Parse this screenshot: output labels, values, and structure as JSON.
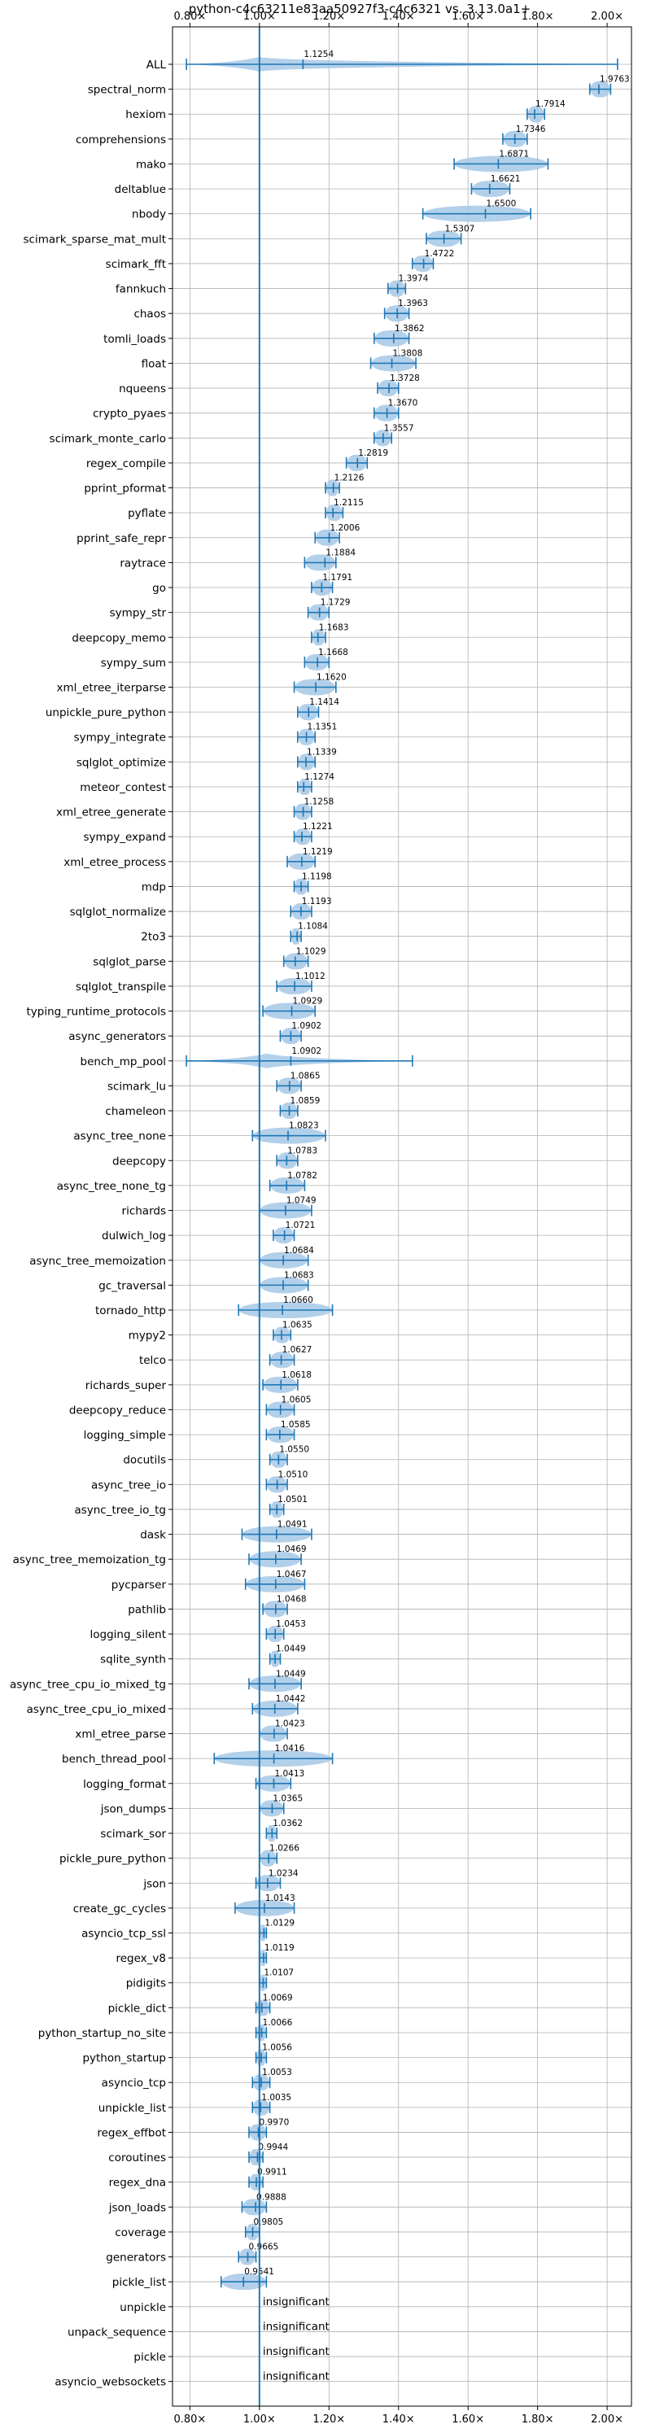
{
  "chart_data": {
    "type": "violin",
    "title": "python-c4c63211e83aa50927f3-c4c6321 vs. 3.13.0a1+",
    "xlim": [
      0.75,
      2.07
    ],
    "x_ticks": [
      0.8,
      1.0,
      1.2,
      1.4,
      1.6,
      1.8,
      2.0
    ],
    "x_tick_labels": [
      "0.80×",
      "1.00×",
      "1.20×",
      "1.40×",
      "1.60×",
      "1.80×",
      "2.00×"
    ],
    "grid": true,
    "reference_line": 1.0,
    "colors": {
      "accent": "#1f77b4",
      "violin_fill": "#a6c8e6",
      "grid": "#b0b0b0"
    },
    "insignificant_text": "insignificant",
    "benchmarks": [
      {
        "name": "ALL",
        "value": 1.1254,
        "label": "1.1254",
        "min": 0.79,
        "max": 2.03,
        "spread": "wide"
      },
      {
        "name": "spectral_norm",
        "value": 1.9763,
        "label": "1.9763",
        "min": 1.95,
        "max": 2.01
      },
      {
        "name": "hexiom",
        "value": 1.7914,
        "label": "1.7914",
        "min": 1.77,
        "max": 1.82
      },
      {
        "name": "comprehensions",
        "value": 1.7346,
        "label": "1.7346",
        "min": 1.7,
        "max": 1.77
      },
      {
        "name": "mako",
        "value": 1.6871,
        "label": "1.6871",
        "min": 1.56,
        "max": 1.83
      },
      {
        "name": "deltablue",
        "value": 1.6621,
        "label": "1.6621",
        "min": 1.61,
        "max": 1.72
      },
      {
        "name": "nbody",
        "value": 1.65,
        "label": "1.6500",
        "min": 1.47,
        "max": 1.78
      },
      {
        "name": "scimark_sparse_mat_mult",
        "value": 1.5307,
        "label": "1.5307",
        "min": 1.48,
        "max": 1.58
      },
      {
        "name": "scimark_fft",
        "value": 1.4722,
        "label": "1.4722",
        "min": 1.44,
        "max": 1.5
      },
      {
        "name": "fannkuch",
        "value": 1.3974,
        "label": "1.3974",
        "min": 1.37,
        "max": 1.42
      },
      {
        "name": "chaos",
        "value": 1.3963,
        "label": "1.3963",
        "min": 1.36,
        "max": 1.43
      },
      {
        "name": "tomli_loads",
        "value": 1.3862,
        "label": "1.3862",
        "min": 1.33,
        "max": 1.43
      },
      {
        "name": "float",
        "value": 1.3808,
        "label": "1.3808",
        "min": 1.32,
        "max": 1.45
      },
      {
        "name": "nqueens",
        "value": 1.3728,
        "label": "1.3728",
        "min": 1.34,
        "max": 1.4
      },
      {
        "name": "crypto_pyaes",
        "value": 1.367,
        "label": "1.3670",
        "min": 1.33,
        "max": 1.4
      },
      {
        "name": "scimark_monte_carlo",
        "value": 1.3557,
        "label": "1.3557",
        "min": 1.33,
        "max": 1.38
      },
      {
        "name": "regex_compile",
        "value": 1.2819,
        "label": "1.2819",
        "min": 1.25,
        "max": 1.31
      },
      {
        "name": "pprint_pformat",
        "value": 1.2126,
        "label": "1.2126",
        "min": 1.19,
        "max": 1.23
      },
      {
        "name": "pyflate",
        "value": 1.2115,
        "label": "1.2115",
        "min": 1.19,
        "max": 1.24
      },
      {
        "name": "pprint_safe_repr",
        "value": 1.2006,
        "label": "1.2006",
        "min": 1.16,
        "max": 1.23
      },
      {
        "name": "raytrace",
        "value": 1.1884,
        "label": "1.1884",
        "min": 1.13,
        "max": 1.22
      },
      {
        "name": "go",
        "value": 1.1791,
        "label": "1.1791",
        "min": 1.15,
        "max": 1.21
      },
      {
        "name": "sympy_str",
        "value": 1.1729,
        "label": "1.1729",
        "min": 1.14,
        "max": 1.2
      },
      {
        "name": "deepcopy_memo",
        "value": 1.1683,
        "label": "1.1683",
        "min": 1.15,
        "max": 1.19
      },
      {
        "name": "sympy_sum",
        "value": 1.1668,
        "label": "1.1668",
        "min": 1.13,
        "max": 1.2
      },
      {
        "name": "xml_etree_iterparse",
        "value": 1.162,
        "label": "1.1620",
        "min": 1.1,
        "max": 1.22
      },
      {
        "name": "unpickle_pure_python",
        "value": 1.1414,
        "label": "1.1414",
        "min": 1.11,
        "max": 1.17
      },
      {
        "name": "sympy_integrate",
        "value": 1.1351,
        "label": "1.1351",
        "min": 1.11,
        "max": 1.16
      },
      {
        "name": "sqlglot_optimize",
        "value": 1.1339,
        "label": "1.1339",
        "min": 1.11,
        "max": 1.16
      },
      {
        "name": "meteor_contest",
        "value": 1.1274,
        "label": "1.1274",
        "min": 1.11,
        "max": 1.15
      },
      {
        "name": "xml_etree_generate",
        "value": 1.1258,
        "label": "1.1258",
        "min": 1.1,
        "max": 1.15
      },
      {
        "name": "sympy_expand",
        "value": 1.1221,
        "label": "1.1221",
        "min": 1.1,
        "max": 1.15
      },
      {
        "name": "xml_etree_process",
        "value": 1.1219,
        "label": "1.1219",
        "min": 1.08,
        "max": 1.16
      },
      {
        "name": "mdp",
        "value": 1.1198,
        "label": "1.1198",
        "min": 1.1,
        "max": 1.14
      },
      {
        "name": "sqlglot_normalize",
        "value": 1.1193,
        "label": "1.1193",
        "min": 1.09,
        "max": 1.15
      },
      {
        "name": "2to3",
        "value": 1.1084,
        "label": "1.1084",
        "min": 1.09,
        "max": 1.12
      },
      {
        "name": "sqlglot_parse",
        "value": 1.1029,
        "label": "1.1029",
        "min": 1.07,
        "max": 1.14
      },
      {
        "name": "sqlglot_transpile",
        "value": 1.1012,
        "label": "1.1012",
        "min": 1.05,
        "max": 1.15
      },
      {
        "name": "typing_runtime_protocols",
        "value": 1.0929,
        "label": "1.0929",
        "min": 1.01,
        "max": 1.16
      },
      {
        "name": "async_generators",
        "value": 1.0902,
        "label": "1.0902",
        "min": 1.06,
        "max": 1.12
      },
      {
        "name": "bench_mp_pool",
        "value": 1.0902,
        "label": "1.0902",
        "min": 0.79,
        "max": 1.44,
        "spread": "wide"
      },
      {
        "name": "scimark_lu",
        "value": 1.0865,
        "label": "1.0865",
        "min": 1.05,
        "max": 1.12
      },
      {
        "name": "chameleon",
        "value": 1.0859,
        "label": "1.0859",
        "min": 1.06,
        "max": 1.11
      },
      {
        "name": "async_tree_none",
        "value": 1.0823,
        "label": "1.0823",
        "min": 0.98,
        "max": 1.19
      },
      {
        "name": "deepcopy",
        "value": 1.0783,
        "label": "1.0783",
        "min": 1.05,
        "max": 1.11
      },
      {
        "name": "async_tree_none_tg",
        "value": 1.0782,
        "label": "1.0782",
        "min": 1.03,
        "max": 1.13
      },
      {
        "name": "richards",
        "value": 1.0749,
        "label": "1.0749",
        "min": 1.0,
        "max": 1.15
      },
      {
        "name": "dulwich_log",
        "value": 1.0721,
        "label": "1.0721",
        "min": 1.04,
        "max": 1.1
      },
      {
        "name": "async_tree_memoization",
        "value": 1.0684,
        "label": "1.0684",
        "min": 1.0,
        "max": 1.14
      },
      {
        "name": "gc_traversal",
        "value": 1.0683,
        "label": "1.0683",
        "min": 1.0,
        "max": 1.14
      },
      {
        "name": "tornado_http",
        "value": 1.066,
        "label": "1.0660",
        "min": 0.94,
        "max": 1.21
      },
      {
        "name": "mypy2",
        "value": 1.0635,
        "label": "1.0635",
        "min": 1.04,
        "max": 1.09
      },
      {
        "name": "telco",
        "value": 1.0627,
        "label": "1.0627",
        "min": 1.03,
        "max": 1.1
      },
      {
        "name": "richards_super",
        "value": 1.0618,
        "label": "1.0618",
        "min": 1.01,
        "max": 1.11
      },
      {
        "name": "deepcopy_reduce",
        "value": 1.0605,
        "label": "1.0605",
        "min": 1.02,
        "max": 1.1
      },
      {
        "name": "logging_simple",
        "value": 1.0585,
        "label": "1.0585",
        "min": 1.02,
        "max": 1.1
      },
      {
        "name": "docutils",
        "value": 1.055,
        "label": "1.0550",
        "min": 1.03,
        "max": 1.08
      },
      {
        "name": "async_tree_io",
        "value": 1.051,
        "label": "1.0510",
        "min": 1.02,
        "max": 1.08
      },
      {
        "name": "async_tree_io_tg",
        "value": 1.0501,
        "label": "1.0501",
        "min": 1.03,
        "max": 1.07
      },
      {
        "name": "dask",
        "value": 1.0491,
        "label": "1.0491",
        "min": 0.95,
        "max": 1.15
      },
      {
        "name": "async_tree_memoization_tg",
        "value": 1.0469,
        "label": "1.0469",
        "min": 0.97,
        "max": 1.12
      },
      {
        "name": "pycparser",
        "value": 1.0467,
        "label": "1.0467",
        "min": 0.96,
        "max": 1.13
      },
      {
        "name": "pathlib",
        "value": 1.0468,
        "label": "1.0468",
        "min": 1.01,
        "max": 1.08
      },
      {
        "name": "logging_silent",
        "value": 1.0453,
        "label": "1.0453",
        "min": 1.02,
        "max": 1.07
      },
      {
        "name": "sqlite_synth",
        "value": 1.0449,
        "label": "1.0449",
        "min": 1.03,
        "max": 1.06
      },
      {
        "name": "async_tree_cpu_io_mixed_tg",
        "value": 1.0449,
        "label": "1.0449",
        "min": 0.97,
        "max": 1.12
      },
      {
        "name": "async_tree_cpu_io_mixed",
        "value": 1.0442,
        "label": "1.0442",
        "min": 0.98,
        "max": 1.11
      },
      {
        "name": "xml_etree_parse",
        "value": 1.0423,
        "label": "1.0423",
        "min": 1.0,
        "max": 1.08
      },
      {
        "name": "bench_thread_pool",
        "value": 1.0416,
        "label": "1.0416",
        "min": 0.87,
        "max": 1.21
      },
      {
        "name": "logging_format",
        "value": 1.0413,
        "label": "1.0413",
        "min": 0.99,
        "max": 1.09
      },
      {
        "name": "json_dumps",
        "value": 1.0365,
        "label": "1.0365",
        "min": 1.0,
        "max": 1.07
      },
      {
        "name": "scimark_sor",
        "value": 1.0362,
        "label": "1.0362",
        "min": 1.02,
        "max": 1.05
      },
      {
        "name": "pickle_pure_python",
        "value": 1.0266,
        "label": "1.0266",
        "min": 1.0,
        "max": 1.05
      },
      {
        "name": "json",
        "value": 1.0234,
        "label": "1.0234",
        "min": 0.99,
        "max": 1.06
      },
      {
        "name": "create_gc_cycles",
        "value": 1.0143,
        "label": "1.0143",
        "min": 0.93,
        "max": 1.1
      },
      {
        "name": "asyncio_tcp_ssl",
        "value": 1.0129,
        "label": "1.0129",
        "min": 1.0,
        "max": 1.02
      },
      {
        "name": "regex_v8",
        "value": 1.0119,
        "label": "1.0119",
        "min": 1.0,
        "max": 1.02
      },
      {
        "name": "pidigits",
        "value": 1.0107,
        "label": "1.0107",
        "min": 1.0,
        "max": 1.02
      },
      {
        "name": "pickle_dict",
        "value": 1.0069,
        "label": "1.0069",
        "min": 0.99,
        "max": 1.03
      },
      {
        "name": "python_startup_no_site",
        "value": 1.0066,
        "label": "1.0066",
        "min": 0.99,
        "max": 1.02
      },
      {
        "name": "python_startup",
        "value": 1.0056,
        "label": "1.0056",
        "min": 0.99,
        "max": 1.02
      },
      {
        "name": "asyncio_tcp",
        "value": 1.0053,
        "label": "1.0053",
        "min": 0.98,
        "max": 1.03
      },
      {
        "name": "unpickle_list",
        "value": 1.0035,
        "label": "1.0035",
        "min": 0.98,
        "max": 1.03
      },
      {
        "name": "regex_effbot",
        "value": 0.997,
        "label": "0.9970",
        "min": 0.97,
        "max": 1.02
      },
      {
        "name": "coroutines",
        "value": 0.9944,
        "label": "0.9944",
        "min": 0.97,
        "max": 1.01
      },
      {
        "name": "regex_dna",
        "value": 0.9911,
        "label": "0.9911",
        "min": 0.97,
        "max": 1.01
      },
      {
        "name": "json_loads",
        "value": 0.9888,
        "label": "0.9888",
        "min": 0.95,
        "max": 1.02
      },
      {
        "name": "coverage",
        "value": 0.9805,
        "label": "0.9805",
        "min": 0.96,
        "max": 1.0
      },
      {
        "name": "generators",
        "value": 0.9665,
        "label": "0.9665",
        "min": 0.94,
        "max": 0.99
      },
      {
        "name": "pickle_list",
        "value": 0.9541,
        "label": "0.9541",
        "min": 0.89,
        "max": 1.02
      },
      {
        "name": "unpickle",
        "insignificant": true
      },
      {
        "name": "unpack_sequence",
        "insignificant": true
      },
      {
        "name": "pickle",
        "insignificant": true
      },
      {
        "name": "asyncio_websockets",
        "insignificant": true
      }
    ]
  }
}
